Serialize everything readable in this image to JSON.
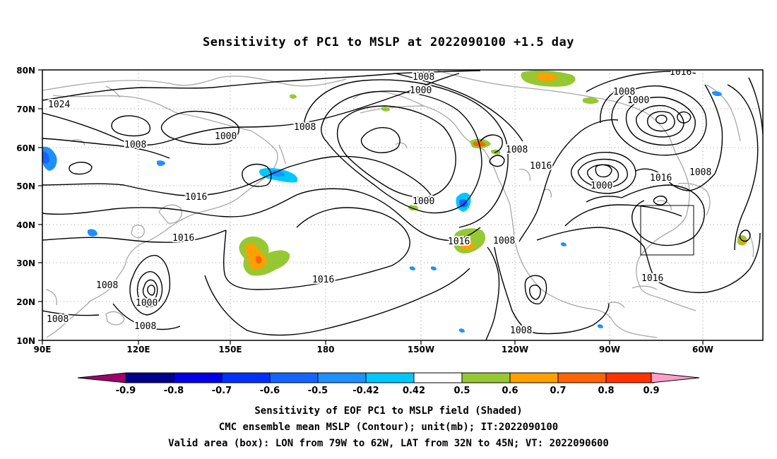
{
  "title": "Sensitivity of PC1 to MSLP at 2022090100 +1.5 day",
  "map": {
    "lat_ticks": [
      "80N",
      "70N",
      "60N",
      "50N",
      "40N",
      "30N",
      "20N",
      "10N"
    ],
    "lon_ticks": [
      "90E",
      "120E",
      "150E",
      "180",
      "150W",
      "120W",
      "90W",
      "60W"
    ],
    "contour_labels": [
      {
        "text": "1008"
      },
      {
        "text": "1000"
      },
      {
        "text": "1016"
      },
      {
        "text": "1024"
      },
      {
        "text": "1000"
      },
      {
        "text": "1008"
      },
      {
        "text": "1008"
      },
      {
        "text": "1008"
      },
      {
        "text": "1000"
      },
      {
        "text": "1008"
      },
      {
        "text": "1016"
      },
      {
        "text": "1016"
      },
      {
        "text": "1000"
      },
      {
        "text": "1008"
      },
      {
        "text": "1016"
      },
      {
        "text": "1016"
      },
      {
        "text": "1016"
      },
      {
        "text": "1008"
      },
      {
        "text": "1016"
      },
      {
        "text": "1000"
      },
      {
        "text": "1008"
      },
      {
        "text": "1008"
      },
      {
        "text": "1000"
      },
      {
        "text": "1008"
      },
      {
        "text": "1008"
      },
      {
        "text": "1016"
      }
    ],
    "valid_area": {
      "lon_from": "79W",
      "lon_to": "62W",
      "lat_from": "32N",
      "lat_to": "45N"
    }
  },
  "colorbar": {
    "labels": [
      "-0.9",
      "-0.8",
      "-0.7",
      "-0.6",
      "-0.5",
      "-0.42",
      "0.42",
      "0.5",
      "0.6",
      "0.7",
      "0.8",
      "0.9"
    ],
    "colors": [
      "#a0006e",
      "#00008b",
      "#0000e6",
      "#0030ff",
      "#1464ff",
      "#1e90ff",
      "#00c8ff",
      "#ffffff",
      "#96c832",
      "#ffa000",
      "#ff6400",
      "#ff3200",
      "#ff0000",
      "#ffa0c8"
    ]
  },
  "footer": {
    "line1": "Sensitivity of EOF PC1 to MSLP field (Shaded)",
    "line2": "CMC ensemble mean MSLP (Contour); unit(mb); IT:2022090100",
    "line3": "Valid area (box): LON from 79W to 62W, LAT from 32N to 45N; VT: 2022090600"
  }
}
